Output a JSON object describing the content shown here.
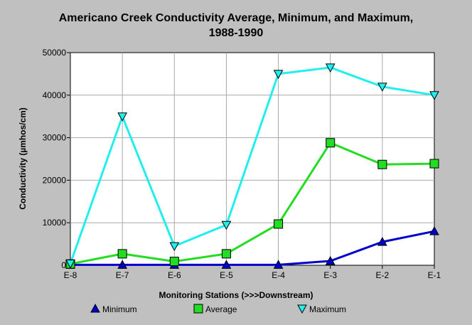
{
  "chart_data": {
    "type": "line",
    "title_line1": "Americano Creek Conductivity Average, Minimum, and Maximum,",
    "title_line2": "1988-1990",
    "xlabel": "Monitoring Stations (>>>Downstream)",
    "ylabel": "Conductivity (µmhos/cm)",
    "categories": [
      "E-8",
      "E-7",
      "E-6",
      "E-5",
      "E-4",
      "E-3",
      "E-2",
      "E-1"
    ],
    "ylim": [
      0,
      50000
    ],
    "yticks": [
      "0",
      "10000",
      "20000",
      "30000",
      "40000",
      "50000"
    ],
    "grid": true,
    "legend_position": "bottom",
    "series": [
      {
        "name": "Minimum",
        "color": "#0000cc",
        "marker": "triangle-up",
        "values": [
          100,
          100,
          100,
          100,
          100,
          1000,
          5500,
          8000
        ]
      },
      {
        "name": "Average",
        "color": "#22dd22",
        "marker": "square",
        "values": [
          300,
          2700,
          900,
          2700,
          9700,
          28800,
          23700,
          23900
        ]
      },
      {
        "name": "Maximum",
        "color": "#22eeee",
        "marker": "triangle-down",
        "values": [
          400,
          35000,
          4500,
          9500,
          45000,
          46500,
          42000,
          40000
        ]
      }
    ]
  }
}
